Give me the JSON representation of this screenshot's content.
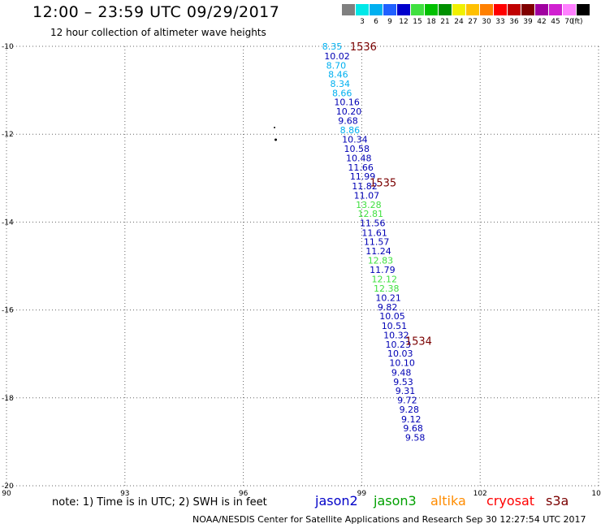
{
  "header": {
    "title": "12:00 – 23:59 UTC 09/29/2017",
    "subtitle": "12 hour collection of altimeter wave heights"
  },
  "color_scale": {
    "unit": "(ft)",
    "swatches": [
      {
        "label": "",
        "color": "#808080"
      },
      {
        "label": "3",
        "color": "#00e8e8"
      },
      {
        "label": "6",
        "color": "#00b0f0"
      },
      {
        "label": "9",
        "color": "#2060ff"
      },
      {
        "label": "12",
        "color": "#0000cc"
      },
      {
        "label": "15",
        "color": "#40e040"
      },
      {
        "label": "18",
        "color": "#00c000"
      },
      {
        "label": "21",
        "color": "#009000"
      },
      {
        "label": "24",
        "color": "#f0f000"
      },
      {
        "label": "27",
        "color": "#ffc000"
      },
      {
        "label": "30",
        "color": "#ff8000"
      },
      {
        "label": "33",
        "color": "#ff0000"
      },
      {
        "label": "36",
        "color": "#c00000"
      },
      {
        "label": "39",
        "color": "#800000"
      },
      {
        "label": "42",
        "color": "#a000a0"
      },
      {
        "label": "45",
        "color": "#d020d0"
      },
      {
        "label": "70",
        "color": "#ff80ff"
      },
      {
        "label": "",
        "color": "#000000"
      }
    ]
  },
  "map": {
    "lon_range": [
      90,
      105
    ],
    "lat_range": [
      -20,
      -10
    ],
    "lon_ticks": [
      "90",
      "93",
      "96",
      "99",
      "102",
      "105"
    ],
    "lat_ticks": [
      "-10",
      "-12",
      "-14",
      "-16",
      "-18",
      "-20"
    ],
    "grid": "dotted",
    "orbit_labels": [
      {
        "text": "1536",
        "lon": 98.7,
        "lat": -10.0,
        "color": "#7a0000"
      },
      {
        "text": "1535",
        "lon": 99.2,
        "lat": -13.1,
        "color": "#7a0000"
      },
      {
        "text": "1534",
        "lon": 100.1,
        "lat": -16.7,
        "color": "#7a0000"
      }
    ],
    "wave_labels": [
      {
        "text": "8.35",
        "lon": 98.0,
        "lat": -10.0,
        "color": "#00b0f0"
      },
      {
        "text": "10.02",
        "lon": 98.05,
        "lat": -10.22,
        "color": "#0000b4"
      },
      {
        "text": "8.70",
        "lon": 98.1,
        "lat": -10.43,
        "color": "#00b0f0"
      },
      {
        "text": "8.46",
        "lon": 98.15,
        "lat": -10.64,
        "color": "#00b0f0"
      },
      {
        "text": "8.34",
        "lon": 98.2,
        "lat": -10.85,
        "color": "#00b0f0"
      },
      {
        "text": "8.66",
        "lon": 98.25,
        "lat": -11.06,
        "color": "#00b0f0"
      },
      {
        "text": "10.16",
        "lon": 98.3,
        "lat": -11.27,
        "color": "#0000b4"
      },
      {
        "text": "10.20",
        "lon": 98.35,
        "lat": -11.48,
        "color": "#0000b4"
      },
      {
        "text": "9.68",
        "lon": 98.4,
        "lat": -11.69,
        "color": "#0000b4"
      },
      {
        "text": "8.86",
        "lon": 98.45,
        "lat": -11.9,
        "color": "#00b0f0"
      },
      {
        "text": "10.34",
        "lon": 98.5,
        "lat": -12.12,
        "color": "#0000b4"
      },
      {
        "text": "10.58",
        "lon": 98.55,
        "lat": -12.33,
        "color": "#0000b4"
      },
      {
        "text": "10.48",
        "lon": 98.6,
        "lat": -12.54,
        "color": "#0000b4"
      },
      {
        "text": "11.66",
        "lon": 98.65,
        "lat": -12.75,
        "color": "#0000b4"
      },
      {
        "text": "11.99",
        "lon": 98.7,
        "lat": -12.96,
        "color": "#0000b4"
      },
      {
        "text": "11.82",
        "lon": 98.75,
        "lat": -13.18,
        "color": "#0000b4"
      },
      {
        "text": "11.07",
        "lon": 98.8,
        "lat": -13.39,
        "color": "#0000b4"
      },
      {
        "text": "13.28",
        "lon": 98.85,
        "lat": -13.6,
        "color": "#40e040"
      },
      {
        "text": "12.81",
        "lon": 98.9,
        "lat": -13.81,
        "color": "#40e040"
      },
      {
        "text": "11.56",
        "lon": 98.95,
        "lat": -14.02,
        "color": "#0000b4"
      },
      {
        "text": "11.61",
        "lon": 99.0,
        "lat": -14.24,
        "color": "#0000b4"
      },
      {
        "text": "11.57",
        "lon": 99.05,
        "lat": -14.45,
        "color": "#0000b4"
      },
      {
        "text": "11.24",
        "lon": 99.1,
        "lat": -14.66,
        "color": "#0000b4"
      },
      {
        "text": "12.83",
        "lon": 99.15,
        "lat": -14.87,
        "color": "#40e040"
      },
      {
        "text": "11.79",
        "lon": 99.2,
        "lat": -15.08,
        "color": "#0000b4"
      },
      {
        "text": "12.12",
        "lon": 99.25,
        "lat": -15.3,
        "color": "#40e040"
      },
      {
        "text": "12.38",
        "lon": 99.3,
        "lat": -15.51,
        "color": "#40e040"
      },
      {
        "text": "10.21",
        "lon": 99.35,
        "lat": -15.72,
        "color": "#0000b4"
      },
      {
        "text": "9.82",
        "lon": 99.4,
        "lat": -15.93,
        "color": "#0000b4"
      },
      {
        "text": "10.05",
        "lon": 99.45,
        "lat": -16.14,
        "color": "#0000b4"
      },
      {
        "text": "10.51",
        "lon": 99.5,
        "lat": -16.36,
        "color": "#0000b4"
      },
      {
        "text": "10.32",
        "lon": 99.55,
        "lat": -16.57,
        "color": "#0000b4"
      },
      {
        "text": "10.23",
        "lon": 99.6,
        "lat": -16.78,
        "color": "#0000b4"
      },
      {
        "text": "10.03",
        "lon": 99.65,
        "lat": -16.99,
        "color": "#0000b4"
      },
      {
        "text": "10.10",
        "lon": 99.7,
        "lat": -17.2,
        "color": "#0000b4"
      },
      {
        "text": "9.48",
        "lon": 99.75,
        "lat": -17.42,
        "color": "#0000b4"
      },
      {
        "text": "9.53",
        "lon": 99.8,
        "lat": -17.63,
        "color": "#0000b4"
      },
      {
        "text": "9.31",
        "lon": 99.85,
        "lat": -17.84,
        "color": "#0000b4"
      },
      {
        "text": "9.72",
        "lon": 99.9,
        "lat": -18.05,
        "color": "#0000b4"
      },
      {
        "text": "9.28",
        "lon": 99.95,
        "lat": -18.26,
        "color": "#0000b4"
      },
      {
        "text": "9.12",
        "lon": 100.0,
        "lat": -18.48,
        "color": "#0000b4"
      },
      {
        "text": "9.68",
        "lon": 100.05,
        "lat": -18.69,
        "color": "#0000b4"
      },
      {
        "text": "9.58",
        "lon": 100.1,
        "lat": -18.9,
        "color": "#0000b4"
      }
    ]
  },
  "footer": {
    "note": "note:  1) Time is in UTC;  2) SWH is in feet",
    "satellites": [
      {
        "name": "jason2",
        "color": "#0000c8"
      },
      {
        "name": "jason3",
        "color": "#00a000"
      },
      {
        "name": "altika",
        "color": "#ff8c00"
      },
      {
        "name": "cryosat",
        "color": "#ff0000"
      },
      {
        "name": "s3a",
        "color": "#7a0000"
      }
    ],
    "credit": "NOAA/NESDIS Center for Satellite Applications and Research    Sep 30 12:27:54 UTC 2017"
  }
}
